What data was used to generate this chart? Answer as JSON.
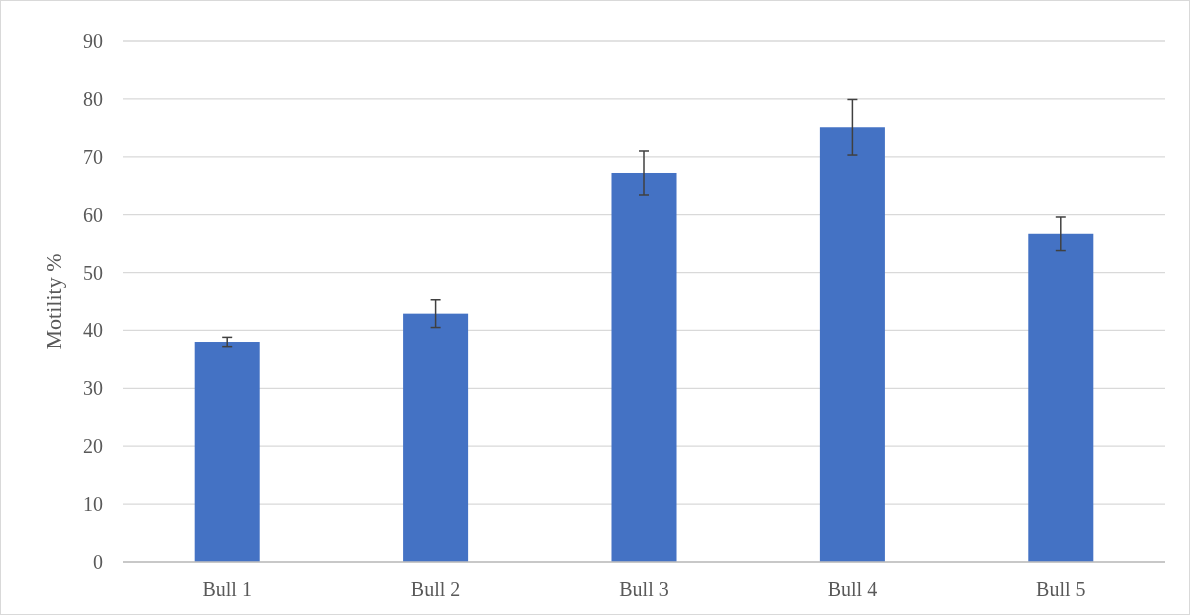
{
  "chart_data": {
    "type": "bar",
    "ylabel": "Motility %",
    "categories": [
      "Bull 1",
      "Bull 2",
      "Bull 3",
      "Bull 4",
      "Bull 5"
    ],
    "values": [
      38.0,
      42.9,
      67.2,
      75.1,
      56.7
    ],
    "errors": [
      0.8,
      2.4,
      3.8,
      4.8,
      2.9
    ],
    "color": "#4472c4",
    "ylim": [
      0,
      90
    ],
    "yticks": [
      0,
      10,
      20,
      30,
      40,
      50,
      60,
      70,
      80,
      90
    ],
    "grid": "y"
  }
}
